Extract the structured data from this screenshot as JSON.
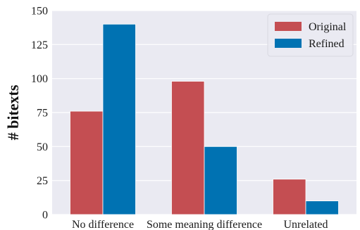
{
  "chart_data": {
    "type": "bar",
    "title": "",
    "xlabel": "",
    "ylabel": "# bitexts",
    "categories": [
      "No difference",
      "Some meaning difference",
      "Unrelated"
    ],
    "series": [
      {
        "name": "Original",
        "values": [
          76,
          98,
          26
        ],
        "color": "#c44e52"
      },
      {
        "name": "Refined",
        "values": [
          140,
          50,
          10
        ],
        "color": "#0072b2"
      }
    ],
    "ylim": [
      0,
      150
    ],
    "yticks": [
      0,
      25,
      50,
      75,
      100,
      125,
      150
    ],
    "grid": true,
    "legend_position": "top-right",
    "plot_background": "#eaeaf2",
    "grid_color": "#ffffff"
  }
}
